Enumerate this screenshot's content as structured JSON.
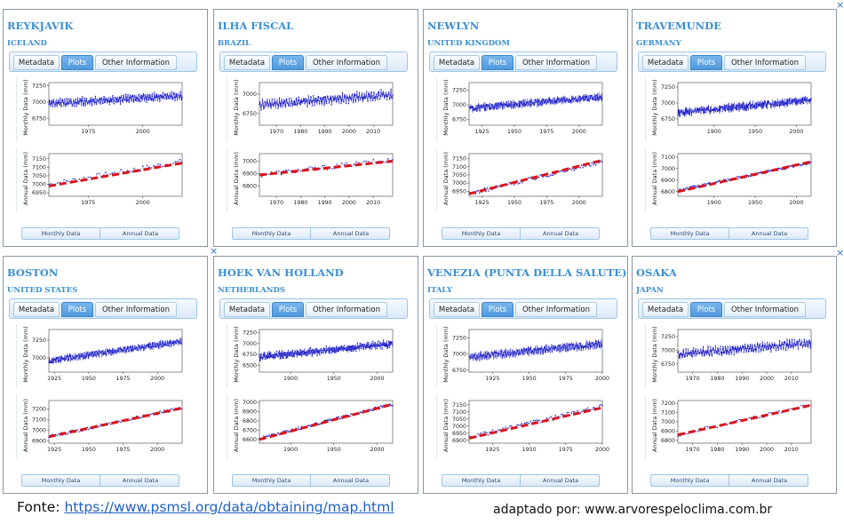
{
  "ui": {
    "tabs": [
      "Metadata",
      "Plots",
      "Other Information"
    ],
    "monthly_button": "Monthly Data",
    "annual_button": "Annual Data",
    "monthly_ylabel": "Monthly Data (mm)",
    "annual_ylabel": "Annual Data (mm)",
    "close_glyph": "×",
    "colors": {
      "accent": "#3b8fd3",
      "series": "#1c1cc8",
      "trend": "#d9141c"
    }
  },
  "footer": {
    "source_label": "Fonte:",
    "source_url": "https://www.psmsl.org/data/obtaining/map.html",
    "credit": "adaptado por:  www.arvorespeloclima.com.br"
  },
  "chart_data": [
    {
      "station": "REYKJAVIK",
      "country": "ICELAND",
      "type": "line",
      "start": 1957,
      "end": 2018,
      "monthly": {
        "xticks": [
          1975,
          2000
        ],
        "yticks": [
          6750,
          7000,
          7250
        ],
        "ylim": [
          6650,
          7300
        ],
        "base": 6980,
        "slope": 2.0,
        "noise": 80
      },
      "annual": {
        "xticks": [
          1975,
          2000
        ],
        "yticks": [
          6950,
          7000,
          7050,
          7100,
          7150
        ],
        "ylim": [
          6930,
          7180
        ],
        "base": 7000,
        "slope": 2.2,
        "noise": 30,
        "trend": [
          6990,
          7125
        ]
      }
    },
    {
      "station": "ILHA FISCAL",
      "country": "BRAZIL",
      "type": "line",
      "start": 1963,
      "end": 2018,
      "monthly": {
        "xticks": [
          1970,
          1980,
          1990,
          2000,
          2010
        ],
        "yticks": [
          6750,
          7000
        ],
        "ylim": [
          6600,
          7150
        ],
        "base": 6860,
        "slope": 2.5,
        "noise": 80
      },
      "annual": {
        "xticks": [
          1970,
          1980,
          1990,
          2000,
          2010
        ],
        "yticks": [
          6800,
          6900,
          7000
        ],
        "ylim": [
          6720,
          7060
        ],
        "base": 6890,
        "slope": 2.2,
        "noise": 40,
        "trend": [
          6890,
          7000
        ]
      }
    },
    {
      "station": "NEWLYN",
      "country": "UNITED KINGDOM",
      "type": "line",
      "start": 1915,
      "end": 2018,
      "monthly": {
        "xticks": [
          1925,
          1950,
          1975,
          2000
        ],
        "yticks": [
          6750,
          7000,
          7250
        ],
        "ylim": [
          6650,
          7380
        ],
        "base": 6940,
        "slope": 1.9,
        "noise": 90
      },
      "annual": {
        "xticks": [
          1925,
          1950,
          1975,
          2000
        ],
        "yticks": [
          6950,
          7000,
          7050,
          7100,
          7150
        ],
        "ylim": [
          6920,
          7180
        ],
        "base": 6935,
        "slope": 1.9,
        "noise": 25,
        "trend": [
          6935,
          7140
        ]
      }
    },
    {
      "station": "TRAVEMUNDE",
      "country": "GERMANY",
      "type": "line",
      "start": 1856,
      "end": 2018,
      "monthly": {
        "xticks": [
          1900,
          1950,
          2000
        ],
        "yticks": [
          6750,
          7000,
          7250
        ],
        "ylim": [
          6650,
          7320
        ],
        "base": 6850,
        "slope": 1.2,
        "noise": 90
      },
      "annual": {
        "xticks": [
          1900,
          1950,
          2000
        ],
        "yticks": [
          6800,
          6900,
          7000,
          7100
        ],
        "ylim": [
          6760,
          7130
        ],
        "base": 6810,
        "slope": 1.5,
        "noise": 25,
        "trend": [
          6800,
          7060
        ]
      }
    },
    {
      "station": "BOSTON",
      "country": "UNITED STATES",
      "type": "line",
      "start": 1921,
      "end": 2018,
      "monthly": {
        "xticks": [
          1925,
          1950,
          1975,
          2000
        ],
        "yticks": [
          7000,
          7250
        ],
        "ylim": [
          6800,
          7400
        ],
        "base": 6960,
        "slope": 2.8,
        "noise": 70
      },
      "annual": {
        "xticks": [
          1925,
          1950,
          1975,
          2000
        ],
        "yticks": [
          6900,
          7000,
          7100,
          7200
        ],
        "ylim": [
          6880,
          7280
        ],
        "base": 6940,
        "slope": 2.8,
        "noise": 30,
        "trend": [
          6940,
          7210
        ]
      }
    },
    {
      "station": "HOEK VAN HOLLAND",
      "country": "NETHERLANDS",
      "type": "line",
      "start": 1864,
      "end": 2018,
      "monthly": {
        "xticks": [
          1900,
          1950,
          2000
        ],
        "yticks": [
          6500,
          6750,
          7000,
          7250
        ],
        "ylim": [
          6350,
          7320
        ],
        "base": 6690,
        "slope": 2.0,
        "noise": 110
      },
      "annual": {
        "xticks": [
          1900,
          1950,
          2000
        ],
        "yticks": [
          6600,
          6700,
          6800,
          6900,
          7000
        ],
        "ylim": [
          6560,
          7020
        ],
        "base": 6610,
        "slope": 2.4,
        "noise": 30,
        "trend": [
          6600,
          6980
        ]
      }
    },
    {
      "station": "VENEZIA (PUNTA DELLA SALUTE)",
      "country": "ITALY",
      "type": "line",
      "start": 1909,
      "end": 2000,
      "monthly": {
        "xticks": [
          1925,
          1950,
          1975,
          2000
        ],
        "yticks": [
          6750,
          7000,
          7250
        ],
        "ylim": [
          6720,
          7380
        ],
        "base": 6950,
        "slope": 2.3,
        "noise": 90
      },
      "annual": {
        "xticks": [
          1925,
          1950,
          1975,
          2000
        ],
        "yticks": [
          6900,
          6950,
          7000,
          7050,
          7100,
          7150
        ],
        "ylim": [
          6880,
          7180
        ],
        "base": 6920,
        "slope": 2.4,
        "noise": 30,
        "trend": [
          6915,
          7130
        ]
      }
    },
    {
      "station": "OSAKA",
      "country": "JAPAN",
      "type": "line",
      "start": 1964,
      "end": 2018,
      "monthly": {
        "xticks": [
          1970,
          1980,
          1990,
          2000,
          2010
        ],
        "yticks": [
          6750,
          7000,
          7250
        ],
        "ylim": [
          6600,
          7380
        ],
        "base": 6920,
        "slope": 4.0,
        "noise": 110
      },
      "annual": {
        "xticks": [
          1970,
          1980,
          1990,
          2000,
          2010
        ],
        "yticks": [
          6800,
          6900,
          7000,
          7100,
          7200
        ],
        "ylim": [
          6770,
          7230
        ],
        "base": 6860,
        "slope": 6.0,
        "noise": 40,
        "trend": [
          6860,
          7180
        ]
      }
    }
  ]
}
